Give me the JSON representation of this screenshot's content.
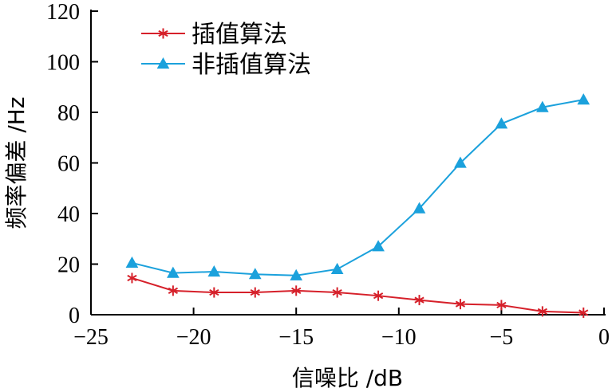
{
  "chart_data": {
    "type": "line",
    "xlabel": "信噪比 /dB",
    "ylabel": "频率偏差 /Hz",
    "xlim": [
      -25,
      0
    ],
    "ylim": [
      0,
      120
    ],
    "xticks": [
      -25,
      -20,
      -15,
      -10,
      -5,
      0
    ],
    "xtick_labels": [
      "−25",
      "−20",
      "−15",
      "−10",
      "−5",
      "0"
    ],
    "yticks": [
      0,
      20,
      40,
      60,
      80,
      100,
      120
    ],
    "ytick_labels": [
      "0",
      "20",
      "40",
      "60",
      "80",
      "100",
      "120"
    ],
    "grid": false,
    "legend_position": "top-left",
    "series": [
      {
        "name": "插值算法",
        "marker": "asterisk",
        "color": "#d6202a",
        "x": [
          -23,
          -21,
          -19,
          -17,
          -15,
          -13,
          -11,
          -9,
          -7,
          -5,
          -3,
          -1
        ],
        "y": [
          14.5,
          9.5,
          8.8,
          8.8,
          9.5,
          8.8,
          7.5,
          5.8,
          4.2,
          3.8,
          1.3,
          0.8
        ]
      },
      {
        "name": "非插值算法",
        "marker": "triangle",
        "color": "#1ba1dc",
        "x": [
          -23,
          -21,
          -19,
          -17,
          -15,
          -13,
          -11,
          -9,
          -7,
          -5,
          -3,
          -1
        ],
        "y": [
          20.5,
          16.5,
          17.0,
          16.0,
          15.5,
          18.0,
          27.0,
          42.0,
          60.0,
          75.5,
          82.0,
          85.0
        ]
      }
    ]
  }
}
